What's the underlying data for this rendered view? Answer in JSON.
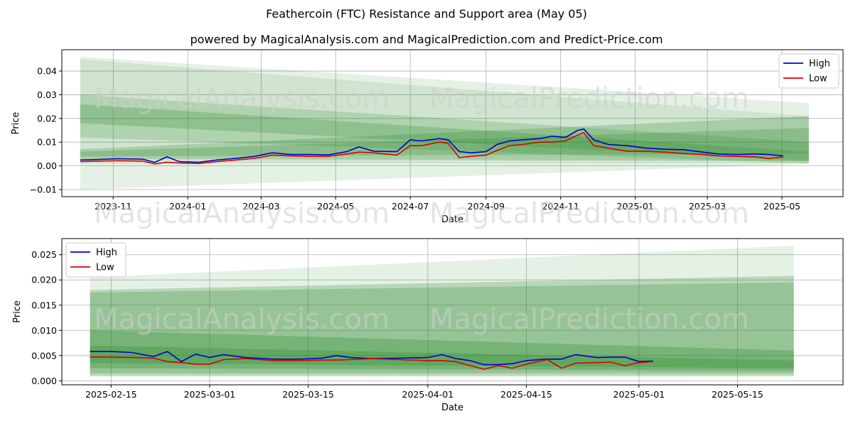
{
  "suptitle": "Feathercoin (FTC) Resistance and Support area (May 05)",
  "subtitle": "powered by MagicalAnalysis.com and MagicalPrediction.com and Predict-Price.com",
  "watermarks": [
    "MagicalAnalysis.com",
    "MagicalPrediction.com"
  ],
  "colors": {
    "high": "#0000cc",
    "low": "#dd0000",
    "band": "#2e8b2e",
    "grid": "#b0b0b0"
  },
  "chart_data": [
    {
      "type": "line",
      "xlabel": "Date",
      "ylabel": "Price",
      "x_range": [
        "2023-09-20",
        "2025-06-20"
      ],
      "ylim": [
        -0.013,
        0.049
      ],
      "x_ticks": [
        {
          "date": "2023-11-01",
          "label": "2023-11"
        },
        {
          "date": "2024-01-01",
          "label": "2024-01"
        },
        {
          "date": "2024-03-01",
          "label": "2024-03"
        },
        {
          "date": "2024-05-01",
          "label": "2024-05"
        },
        {
          "date": "2024-07-01",
          "label": "2024-07"
        },
        {
          "date": "2024-09-01",
          "label": "2024-09"
        },
        {
          "date": "2024-11-01",
          "label": "2024-11"
        },
        {
          "date": "2025-01-01",
          "label": "2025-01"
        },
        {
          "date": "2025-03-01",
          "label": "2025-03"
        },
        {
          "date": "2025-05-01",
          "label": "2025-05"
        }
      ],
      "y_ticks": [
        {
          "value": -0.01,
          "label": "−0.01"
        },
        {
          "value": 0.0,
          "label": "0.00"
        },
        {
          "value": 0.01,
          "label": "0.01"
        },
        {
          "value": 0.02,
          "label": "0.02"
        },
        {
          "value": 0.03,
          "label": "0.03"
        },
        {
          "value": 0.04,
          "label": "0.04"
        }
      ],
      "grid": true,
      "legend_position": "top-right",
      "bands": [
        {
          "x": [
            "2023-10-05",
            "2025-05-23"
          ],
          "lower": [
            -0.01,
            0.0008
          ],
          "upper": [
            0.046,
            0.0265
          ],
          "opacity": 0.12
        },
        {
          "x": [
            "2023-10-05",
            "2025-05-23"
          ],
          "lower": [
            0.001,
            0.001
          ],
          "upper": [
            0.045,
            0.021
          ],
          "opacity": 0.12
        },
        {
          "x": [
            "2023-10-05",
            "2025-05-23"
          ],
          "lower": [
            0.012,
            0.001
          ],
          "upper": [
            0.03,
            0.01
          ],
          "opacity": 0.2
        },
        {
          "x": [
            "2023-10-05",
            "2025-05-23"
          ],
          "lower": [
            0.018,
            0.002
          ],
          "upper": [
            0.026,
            0.006
          ],
          "opacity": 0.25
        },
        {
          "x": [
            "2023-10-05",
            "2025-05-23"
          ],
          "lower": [
            0.003,
            0.002
          ],
          "upper": [
            0.007,
            0.021
          ],
          "opacity": 0.25
        },
        {
          "x": [
            "2023-10-05",
            "2025-05-23"
          ],
          "lower": [
            0.004,
            0.005
          ],
          "upper": [
            0.006,
            0.016
          ],
          "opacity": 0.25
        }
      ],
      "series": [
        {
          "name": "High",
          "color_key": "high",
          "x": [
            "2023-10-05",
            "2023-10-20",
            "2023-11-05",
            "2023-11-25",
            "2023-12-05",
            "2023-12-15",
            "2023-12-25",
            "2024-01-10",
            "2024-01-25",
            "2024-02-10",
            "2024-02-25",
            "2024-03-10",
            "2024-03-25",
            "2024-04-10",
            "2024-04-25",
            "2024-05-10",
            "2024-05-20",
            "2024-06-01",
            "2024-06-20",
            "2024-07-01",
            "2024-07-10",
            "2024-07-25",
            "2024-08-01",
            "2024-08-10",
            "2024-08-20",
            "2024-09-01",
            "2024-09-10",
            "2024-09-20",
            "2024-10-01",
            "2024-10-15",
            "2024-10-25",
            "2024-11-05",
            "2024-11-15",
            "2024-11-20",
            "2024-11-28",
            "2024-12-10",
            "2024-12-25",
            "2025-01-10",
            "2025-01-25",
            "2025-02-10",
            "2025-02-25",
            "2025-03-10",
            "2025-03-25",
            "2025-04-10",
            "2025-04-20",
            "2025-05-02"
          ],
          "values": [
            0.0025,
            0.0027,
            0.003,
            0.0028,
            0.0015,
            0.0038,
            0.0018,
            0.0015,
            0.0025,
            0.0032,
            0.004,
            0.0055,
            0.0048,
            0.0048,
            0.0046,
            0.006,
            0.008,
            0.0062,
            0.006,
            0.011,
            0.0105,
            0.0115,
            0.011,
            0.006,
            0.0055,
            0.006,
            0.009,
            0.0105,
            0.011,
            0.0115,
            0.0125,
            0.012,
            0.015,
            0.0155,
            0.011,
            0.009,
            0.0085,
            0.0075,
            0.007,
            0.0068,
            0.0058,
            0.005,
            0.0048,
            0.005,
            0.0048,
            0.0042
          ]
        },
        {
          "name": "Low",
          "color_key": "low",
          "x": [
            "2023-10-05",
            "2023-10-20",
            "2023-11-05",
            "2023-11-25",
            "2023-12-05",
            "2023-12-15",
            "2023-12-25",
            "2024-01-10",
            "2024-01-25",
            "2024-02-10",
            "2024-02-25",
            "2024-03-10",
            "2024-03-25",
            "2024-04-10",
            "2024-04-25",
            "2024-05-10",
            "2024-05-20",
            "2024-06-01",
            "2024-06-20",
            "2024-07-01",
            "2024-07-10",
            "2024-07-25",
            "2024-08-01",
            "2024-08-10",
            "2024-08-20",
            "2024-09-01",
            "2024-09-10",
            "2024-09-20",
            "2024-10-01",
            "2024-10-15",
            "2024-10-25",
            "2024-11-05",
            "2024-11-15",
            "2024-11-20",
            "2024-11-28",
            "2024-12-10",
            "2024-12-25",
            "2025-01-10",
            "2025-01-25",
            "2025-02-10",
            "2025-02-25",
            "2025-03-10",
            "2025-03-25",
            "2025-04-10",
            "2025-04-20",
            "2025-05-02"
          ],
          "values": [
            0.0018,
            0.002,
            0.0022,
            0.002,
            0.0008,
            0.0015,
            0.0012,
            0.001,
            0.0018,
            0.0025,
            0.0032,
            0.0045,
            0.0042,
            0.004,
            0.004,
            0.005,
            0.0058,
            0.0055,
            0.0045,
            0.0085,
            0.0085,
            0.01,
            0.0095,
            0.0035,
            0.004,
            0.0045,
            0.0065,
            0.0085,
            0.009,
            0.01,
            0.01,
            0.0105,
            0.013,
            0.014,
            0.0085,
            0.0075,
            0.0062,
            0.0062,
            0.0058,
            0.0052,
            0.0048,
            0.0042,
            0.004,
            0.0038,
            0.003,
            0.0038
          ]
        }
      ]
    },
    {
      "type": "line",
      "xlabel": "Date",
      "ylabel": "Price",
      "x_range": [
        "2025-02-08",
        "2025-05-30"
      ],
      "ylim": [
        -0.0008,
        0.0282
      ],
      "x_ticks": [
        {
          "date": "2025-02-15",
          "label": "2025-02-15"
        },
        {
          "date": "2025-03-01",
          "label": "2025-03-01"
        },
        {
          "date": "2025-03-15",
          "label": "2025-03-15"
        },
        {
          "date": "2025-04-01",
          "label": "2025-04-01"
        },
        {
          "date": "2025-04-15",
          "label": "2025-04-15"
        },
        {
          "date": "2025-05-01",
          "label": "2025-05-01"
        },
        {
          "date": "2025-05-15",
          "label": "2025-05-15"
        }
      ],
      "y_ticks": [
        {
          "value": 0.0,
          "label": "0.000"
        },
        {
          "value": 0.005,
          "label": "0.005"
        },
        {
          "value": 0.01,
          "label": "0.010"
        },
        {
          "value": 0.015,
          "label": "0.015"
        },
        {
          "value": 0.02,
          "label": "0.020"
        },
        {
          "value": 0.025,
          "label": "0.025"
        }
      ],
      "grid": true,
      "legend_position": "top-left",
      "bands": [
        {
          "x": [
            "2025-02-12",
            "2025-05-23"
          ],
          "lower": [
            0.0008,
            0.0008
          ],
          "upper": [
            0.0205,
            0.0268
          ],
          "opacity": 0.12
        },
        {
          "x": [
            "2025-02-12",
            "2025-05-23"
          ],
          "lower": [
            0.001,
            0.001
          ],
          "upper": [
            0.018,
            0.0208
          ],
          "opacity": 0.25
        },
        {
          "x": [
            "2025-02-12",
            "2025-05-23"
          ],
          "lower": [
            0.0015,
            0.0015
          ],
          "upper": [
            0.0175,
            0.0195
          ],
          "opacity": 0.25
        },
        {
          "x": [
            "2025-02-12",
            "2025-05-23"
          ],
          "lower": [
            0.0025,
            0.002
          ],
          "upper": [
            0.01,
            0.006
          ],
          "opacity": 0.3
        },
        {
          "x": [
            "2025-02-12",
            "2025-05-23"
          ],
          "lower": [
            0.0035,
            0.0025
          ],
          "upper": [
            0.007,
            0.004
          ],
          "opacity": 0.3
        }
      ],
      "series": [
        {
          "name": "High",
          "color_key": "high",
          "x": [
            "2025-02-12",
            "2025-02-15",
            "2025-02-18",
            "2025-02-21",
            "2025-02-23",
            "2025-02-25",
            "2025-02-27",
            "2025-03-01",
            "2025-03-03",
            "2025-03-06",
            "2025-03-10",
            "2025-03-14",
            "2025-03-17",
            "2025-03-19",
            "2025-03-21",
            "2025-03-24",
            "2025-03-28",
            "2025-04-01",
            "2025-04-03",
            "2025-04-05",
            "2025-04-07",
            "2025-04-09",
            "2025-04-11",
            "2025-04-13",
            "2025-04-15",
            "2025-04-18",
            "2025-04-20",
            "2025-04-22",
            "2025-04-25",
            "2025-04-27",
            "2025-04-29",
            "2025-05-01",
            "2025-05-03"
          ],
          "values": [
            0.0058,
            0.0058,
            0.0056,
            0.0048,
            0.0058,
            0.0038,
            0.0053,
            0.0046,
            0.0052,
            0.0046,
            0.0043,
            0.0043,
            0.0045,
            0.005,
            0.0046,
            0.0044,
            0.0045,
            0.0046,
            0.0052,
            0.0044,
            0.004,
            0.0032,
            0.0032,
            0.0034,
            0.004,
            0.0043,
            0.0043,
            0.0052,
            0.0046,
            0.0047,
            0.0047,
            0.0038,
            0.0039
          ]
        },
        {
          "name": "Low",
          "color_key": "low",
          "x": [
            "2025-02-12",
            "2025-02-15",
            "2025-02-18",
            "2025-02-21",
            "2025-02-23",
            "2025-02-25",
            "2025-02-27",
            "2025-03-01",
            "2025-03-03",
            "2025-03-06",
            "2025-03-10",
            "2025-03-14",
            "2025-03-17",
            "2025-03-19",
            "2025-03-21",
            "2025-03-24",
            "2025-03-28",
            "2025-04-01",
            "2025-04-03",
            "2025-04-05",
            "2025-04-07",
            "2025-04-09",
            "2025-04-11",
            "2025-04-13",
            "2025-04-15",
            "2025-04-18",
            "2025-04-20",
            "2025-04-22",
            "2025-04-25",
            "2025-04-27",
            "2025-04-29",
            "2025-05-01",
            "2025-05-03"
          ],
          "values": [
            0.0047,
            0.0047,
            0.0046,
            0.0045,
            0.0038,
            0.0036,
            0.0033,
            0.0033,
            0.0042,
            0.0044,
            0.004,
            0.004,
            0.0041,
            0.0041,
            0.0042,
            0.0044,
            0.0042,
            0.004,
            0.004,
            0.0038,
            0.003,
            0.0023,
            0.003,
            0.0025,
            0.0033,
            0.0042,
            0.0025,
            0.0035,
            0.0036,
            0.0037,
            0.003,
            0.0036,
            0.0038
          ]
        }
      ]
    }
  ],
  "legend": {
    "high_label": "High",
    "low_label": "Low"
  }
}
